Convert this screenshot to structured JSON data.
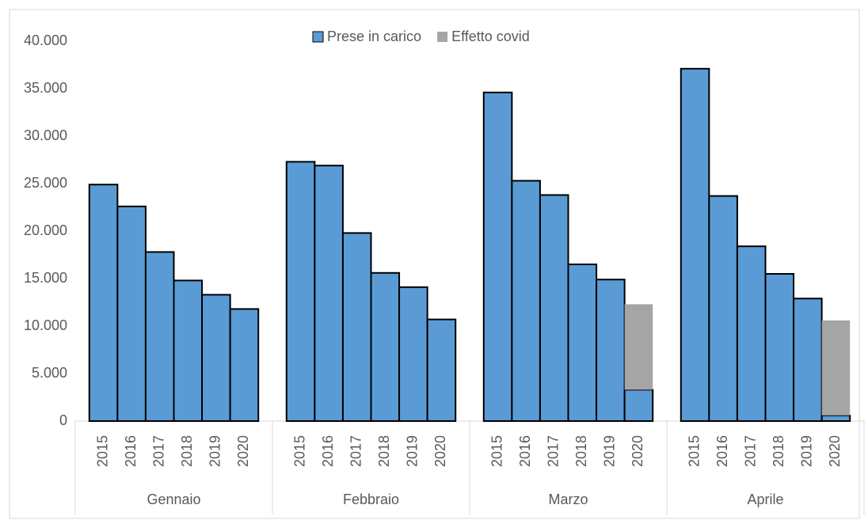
{
  "chart_data": {
    "type": "stacked-bar",
    "categories": [
      "2015",
      "2016",
      "2017",
      "2018",
      "2019",
      "2020",
      "2015",
      "2016",
      "2017",
      "2018",
      "2019",
      "2020",
      "2015",
      "2016",
      "2017",
      "2018",
      "2019",
      "2020",
      "2015",
      "2016",
      "2017",
      "2018",
      "2019",
      "2020"
    ],
    "groups": [
      "Gennaio",
      "Febbraio",
      "Marzo",
      "Aprile"
    ],
    "series": [
      {
        "name": "Prese in carico",
        "color": "#5b9bd5",
        "values": [
          24900,
          22600,
          17800,
          14800,
          13300,
          11800,
          27300,
          26900,
          19800,
          15600,
          14100,
          10700,
          34600,
          25300,
          23800,
          16500,
          14900,
          3300,
          37100,
          23700,
          18400,
          15500,
          12900,
          600
        ]
      },
      {
        "name": "Effetto covid",
        "color": "#a5a5a5",
        "values": [
          null,
          null,
          null,
          null,
          null,
          null,
          null,
          null,
          null,
          null,
          null,
          null,
          null,
          null,
          null,
          null,
          null,
          9000,
          null,
          null,
          null,
          null,
          null,
          10000
        ]
      }
    ],
    "ylim": [
      0,
      40000
    ],
    "yticks": [
      0,
      {
        "value": 5000,
        "label": "5.000"
      },
      {
        "value": 10000,
        "label": "10.000"
      },
      {
        "value": 15000,
        "label": "15.000"
      },
      {
        "value": 20000,
        "label": "20.000"
      },
      {
        "value": 25000,
        "label": "25.000"
      },
      {
        "value": 30000,
        "label": "30.000"
      },
      {
        "value": 35000,
        "label": "35.000"
      },
      {
        "value": 40000,
        "label": "40.000"
      }
    ],
    "legend": "top"
  }
}
